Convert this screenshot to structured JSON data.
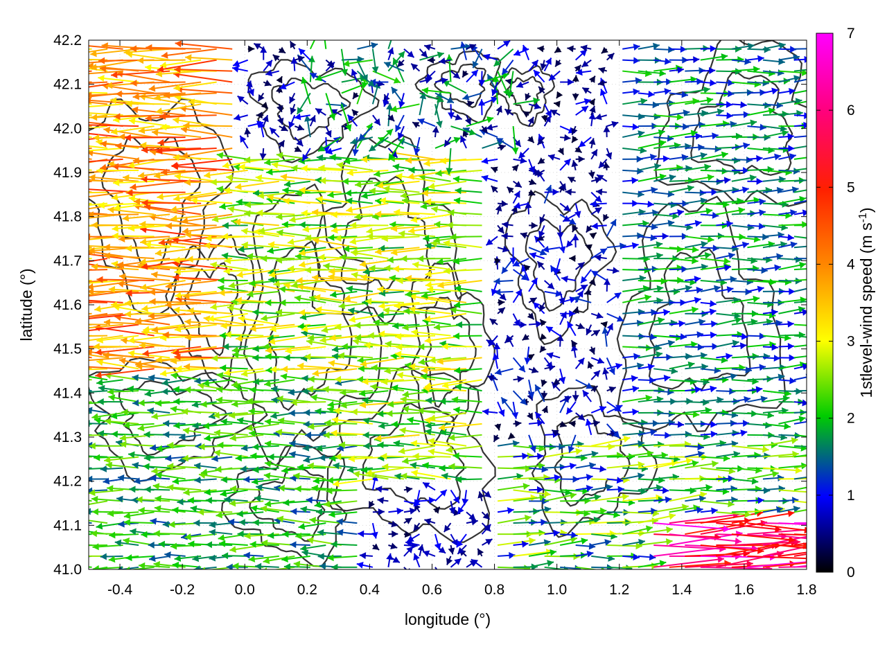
{
  "chart_data": {
    "type": "vector-field",
    "xlabel": "longitude (°)",
    "ylabel": "latitude (°)",
    "xlim": [
      -0.5,
      1.8
    ],
    "ylim": [
      41.0,
      42.2
    ],
    "x_ticks": [
      -0.4,
      -0.2,
      0.0,
      0.2,
      0.4,
      0.6,
      0.8,
      1.0,
      1.2,
      1.4,
      1.6,
      1.8
    ],
    "x_tick_labels": [
      "-0.4",
      "-0.2",
      "0.0",
      "0.2",
      "0.4",
      "0.6",
      "0.8",
      "1.0",
      "1.2",
      "1.4",
      "1.6",
      "1.8"
    ],
    "y_ticks": [
      41.0,
      41.1,
      41.2,
      41.3,
      41.4,
      41.5,
      41.6,
      41.7,
      41.8,
      41.9,
      42.0,
      42.1,
      42.2
    ],
    "y_tick_labels": [
      "41.0",
      "41.1",
      "41.2",
      "41.3",
      "41.4",
      "41.5",
      "41.6",
      "41.7",
      "41.8",
      "41.9",
      "42.0",
      "42.1",
      "42.2"
    ],
    "grid": true,
    "colorbar": {
      "label": "1stlevel-wind speed (m s",
      "label_sup": "-1",
      "label_end": ")",
      "range": [
        0,
        7
      ],
      "ticks": [
        0,
        1,
        2,
        3,
        4,
        5,
        6,
        7
      ],
      "tick_labels": [
        "0",
        "1",
        "2",
        "3",
        "4",
        "5",
        "6",
        "7"
      ],
      "palette": [
        "#000000",
        "#0000ff",
        "#00cc00",
        "#ffff00",
        "#ff8800",
        "#ff0000",
        "#ff00ff"
      ]
    },
    "vector_regions": [
      {
        "lon": [
          -0.5,
          0.0
        ],
        "lat": [
          41.45,
          42.2
        ],
        "direction": "westward",
        "speed": [
          3.5,
          5.5
        ]
      },
      {
        "lon": [
          0.0,
          0.8
        ],
        "lat": [
          41.2,
          41.95
        ],
        "direction": "westward",
        "speed": [
          2.0,
          4.0
        ]
      },
      {
        "lon": [
          -0.5,
          0.4
        ],
        "lat": [
          41.0,
          41.45
        ],
        "direction": "westward",
        "speed": [
          1.5,
          3.0
        ]
      },
      {
        "lon": [
          0.2,
          0.9
        ],
        "lat": [
          41.95,
          42.2
        ],
        "direction": "variable",
        "speed": [
          0.3,
          2.5
        ]
      },
      {
        "lon": [
          0.8,
          1.4
        ],
        "lat": [
          41.3,
          41.9
        ],
        "direction": "variable",
        "speed": [
          0.2,
          1.5
        ]
      },
      {
        "lon": [
          1.2,
          1.8
        ],
        "lat": [
          41.3,
          42.2
        ],
        "direction": "eastward",
        "speed": [
          1.0,
          2.5
        ]
      },
      {
        "lon": [
          0.8,
          1.8
        ],
        "lat": [
          41.0,
          41.3
        ],
        "direction": "eastward",
        "speed": [
          1.0,
          3.5
        ]
      },
      {
        "lon": [
          1.3,
          1.8
        ],
        "lat": [
          41.0,
          41.12
        ],
        "direction": "eastward",
        "speed": [
          5.5,
          7.0
        ]
      }
    ]
  }
}
